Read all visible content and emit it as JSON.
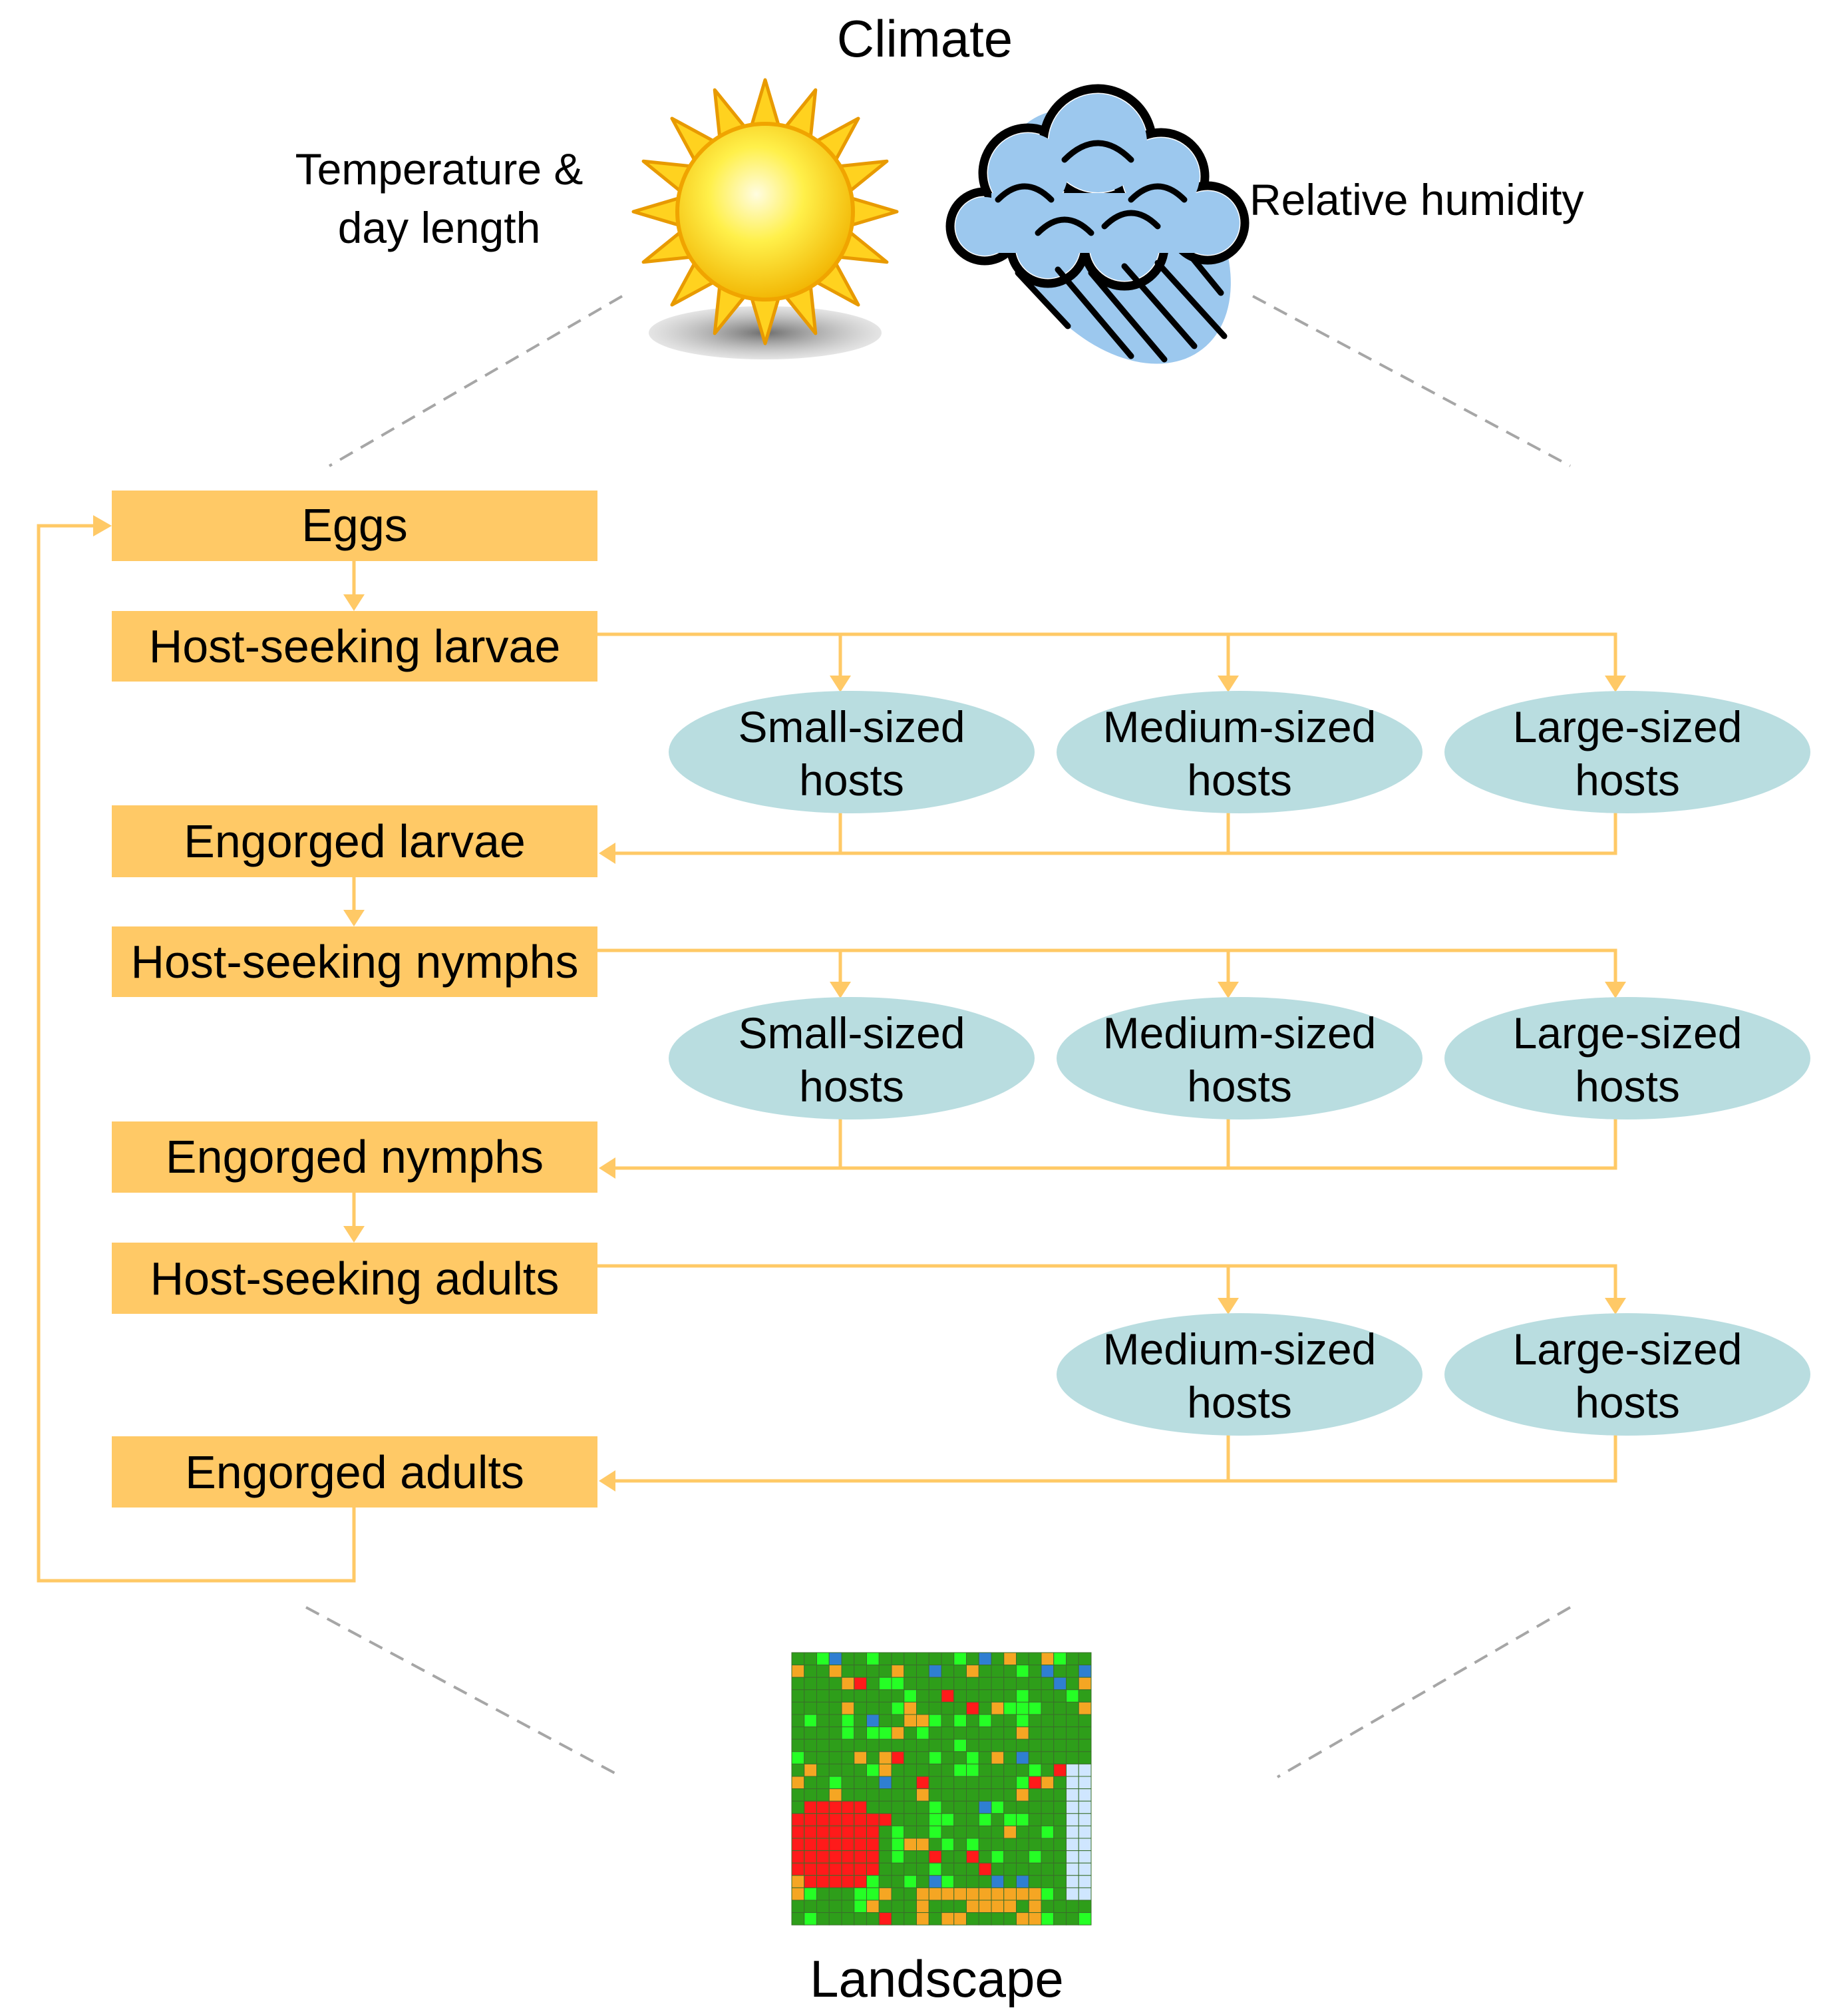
{
  "climate": {
    "title": "Climate",
    "temperature_label_line1": "Temperature &",
    "temperature_label_line2": "day length",
    "humidity_label": "Relative humidity",
    "sun_icon": "sun-icon",
    "cloud_icon": "rain-cloud-icon"
  },
  "stages": {
    "eggs": "Eggs",
    "host_seeking_larvae": "Host-seeking larvae",
    "engorged_larvae": "Engorged larvae",
    "host_seeking_nymphs": "Host-seeking nymphs",
    "engorged_nymphs": "Engorged nymphs",
    "host_seeking_adults": "Host-seeking adults",
    "engorged_adults": "Engorged adults"
  },
  "hosts": {
    "small_line1": "Small-sized",
    "medium_line1": "Medium-sized",
    "large_line1": "Large-sized",
    "line2": "hosts"
  },
  "landscape": {
    "title": "Landscape",
    "grid_icon": "landscape-grid-icon"
  },
  "colors": {
    "stage_box": "#FFC966",
    "arrow": "#FFC966",
    "host_ellipse": "#B9DDE0",
    "dashed_line": "#A6A6A6"
  }
}
